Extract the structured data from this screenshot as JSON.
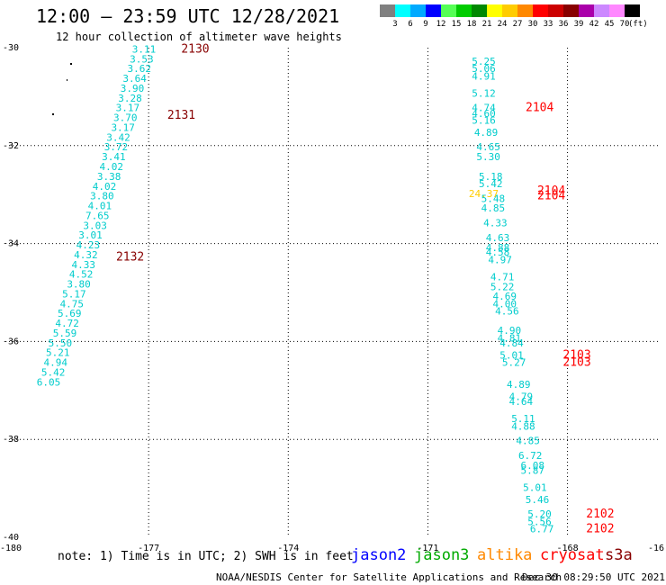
{
  "title": "12:00 — 23:59 UTC 12/28/2021",
  "subtitle": "12 hour collection of altimeter wave heights",
  "color_scale": {
    "colors": [
      "#808080",
      "#00ffff",
      "#00aaff",
      "#0000ff",
      "#55ff55",
      "#00cc00",
      "#008800",
      "#ffff00",
      "#ffcc00",
      "#ff8800",
      "#ff0000",
      "#cc0000",
      "#880000",
      "#aa00aa",
      "#cc88ff",
      "#ff88ff",
      "#000000"
    ],
    "labels": [
      "3",
      "6",
      "9",
      "12",
      "15",
      "18",
      "21",
      "24",
      "27",
      "30",
      "33",
      "36",
      "39",
      "42",
      "45",
      "70"
    ],
    "unit": "(ft)"
  },
  "lon_ticks": [
    "-180",
    "-177",
    "-174",
    "-171",
    "-168",
    "-16"
  ],
  "lat_ticks": [
    "-30",
    "-32",
    "-34",
    "-36",
    "-38",
    "-40"
  ],
  "note": "note: 1) Time is in UTC; 2) SWH is in feet",
  "legend": [
    {
      "name": "jason2",
      "color": "#0000ff"
    },
    {
      "name": "jason3",
      "color": "#00aa00"
    },
    {
      "name": "altika",
      "color": "#ff8800"
    },
    {
      "name": "cryosat",
      "color": "#ff0000"
    },
    {
      "name": "s3a",
      "color": "#880000"
    }
  ],
  "footer_left": "NOAA/NESDIS Center for Satellite Applications and Research",
  "footer_right": "Dec 30 08:29:50 UTC 2021",
  "map_data": {
    "track_west": {
      "color": "#00cccc",
      "points": [
        {
          "lon": -177.1,
          "lat": -30.1,
          "swh": "3.11"
        },
        {
          "lon": -177.15,
          "lat": -30.3,
          "swh": "3.53"
        },
        {
          "lon": -177.2,
          "lat": -30.5,
          "swh": "3.62"
        },
        {
          "lon": -177.3,
          "lat": -30.7,
          "swh": "3.64"
        },
        {
          "lon": -177.35,
          "lat": -30.9,
          "swh": "3.90"
        },
        {
          "lon": -177.4,
          "lat": -31.1,
          "swh": "3.28"
        },
        {
          "lon": -177.45,
          "lat": -31.3,
          "swh": "3.17"
        },
        {
          "lon": -177.5,
          "lat": -31.5,
          "swh": "3.70"
        },
        {
          "lon": -177.55,
          "lat": -31.7,
          "swh": "3.17"
        },
        {
          "lon": -177.65,
          "lat": -31.9,
          "swh": "3.42"
        },
        {
          "lon": -177.7,
          "lat": -32.1,
          "swh": "3.72"
        },
        {
          "lon": -177.75,
          "lat": -32.3,
          "swh": "3.41"
        },
        {
          "lon": -177.8,
          "lat": -32.5,
          "swh": "4.02"
        },
        {
          "lon": -177.85,
          "lat": -32.7,
          "swh": "3.38"
        },
        {
          "lon": -177.95,
          "lat": -32.9,
          "swh": "4.02"
        },
        {
          "lon": -178.0,
          "lat": -33.1,
          "swh": "3.80"
        },
        {
          "lon": -178.05,
          "lat": -33.3,
          "swh": "4.01"
        },
        {
          "lon": -178.1,
          "lat": -33.5,
          "swh": "7.65"
        },
        {
          "lon": -178.15,
          "lat": -33.7,
          "swh": "3.03"
        },
        {
          "lon": -178.25,
          "lat": -33.9,
          "swh": "3.01"
        },
        {
          "lon": -178.3,
          "lat": -34.1,
          "swh": "4.23"
        },
        {
          "lon": -178.35,
          "lat": -34.3,
          "swh": "4.32"
        },
        {
          "lon": -178.4,
          "lat": -34.5,
          "swh": "4.33"
        },
        {
          "lon": -178.45,
          "lat": -34.7,
          "swh": "4.52"
        },
        {
          "lon": -178.5,
          "lat": -34.9,
          "swh": "3.80"
        },
        {
          "lon": -178.6,
          "lat": -35.1,
          "swh": "5.17"
        },
        {
          "lon": -178.65,
          "lat": -35.3,
          "swh": "4.75"
        },
        {
          "lon": -178.7,
          "lat": -35.5,
          "swh": "5.69"
        },
        {
          "lon": -178.75,
          "lat": -35.7,
          "swh": "4.72"
        },
        {
          "lon": -178.8,
          "lat": -35.9,
          "swh": "5.59"
        },
        {
          "lon": -178.9,
          "lat": -36.1,
          "swh": "5.50"
        },
        {
          "lon": -178.95,
          "lat": -36.3,
          "swh": "5.21"
        },
        {
          "lon": -179.0,
          "lat": -36.5,
          "swh": "4.94"
        },
        {
          "lon": -179.05,
          "lat": -36.7,
          "swh": "5.42"
        },
        {
          "lon": -179.15,
          "lat": -36.9,
          "swh": "6.05"
        }
      ],
      "times": [
        {
          "lon": -176.3,
          "lat": -30.1,
          "label": "2130",
          "color": "#880000"
        },
        {
          "lon": -176.6,
          "lat": -31.45,
          "label": "2131",
          "color": "#880000"
        },
        {
          "lon": -177.7,
          "lat": -34.35,
          "label": "2132",
          "color": "#880000"
        }
      ]
    },
    "track_east": {
      "color": "#00cccc",
      "points": [
        {
          "lon": -169.8,
          "lat": -30.35,
          "swh": "5.25"
        },
        {
          "lon": -169.8,
          "lat": -30.5,
          "swh": "5.06"
        },
        {
          "lon": -169.8,
          "lat": -30.65,
          "swh": "4.91"
        },
        {
          "lon": -169.8,
          "lat": -31.0,
          "swh": "5.12"
        },
        {
          "lon": -169.8,
          "lat": -31.3,
          "swh": "4.74"
        },
        {
          "lon": -169.8,
          "lat": -31.42,
          "swh": "4.60"
        },
        {
          "lon": -169.8,
          "lat": -31.55,
          "swh": "5.16"
        },
        {
          "lon": -169.75,
          "lat": -31.8,
          "swh": "4.89"
        },
        {
          "lon": -169.7,
          "lat": -32.1,
          "swh": "4.65"
        },
        {
          "lon": -169.7,
          "lat": -32.3,
          "swh": "5.30"
        },
        {
          "lon": -169.65,
          "lat": -32.7,
          "swh": "5.18"
        },
        {
          "lon": -169.65,
          "lat": -32.85,
          "swh": "5.42"
        },
        {
          "lon": -169.6,
          "lat": -33.15,
          "swh": "5.48"
        },
        {
          "lon": -169.6,
          "lat": -33.35,
          "swh": "4.85"
        },
        {
          "lon": -169.55,
          "lat": -33.65,
          "swh": "4.33"
        },
        {
          "lon": -169.5,
          "lat": -33.95,
          "swh": "4.63"
        },
        {
          "lon": -169.5,
          "lat": -34.15,
          "swh": "4.88"
        },
        {
          "lon": -169.5,
          "lat": -34.25,
          "swh": "4.58"
        },
        {
          "lon": -169.45,
          "lat": -34.4,
          "swh": "4.97"
        },
        {
          "lon": -169.4,
          "lat": -34.75,
          "swh": "4.71"
        },
        {
          "lon": -169.4,
          "lat": -34.95,
          "swh": "5.22"
        },
        {
          "lon": -169.35,
          "lat": -35.15,
          "swh": "4.69"
        },
        {
          "lon": -169.35,
          "lat": -35.3,
          "swh": "4.00"
        },
        {
          "lon": -169.3,
          "lat": -35.45,
          "swh": "4.56"
        },
        {
          "lon": -169.25,
          "lat": -35.85,
          "swh": "4.90"
        },
        {
          "lon": -169.25,
          "lat": -36.0,
          "swh": "4.81"
        },
        {
          "lon": -169.2,
          "lat": -36.1,
          "swh": "4.84"
        },
        {
          "lon": -169.2,
          "lat": -36.35,
          "swh": "5.01"
        },
        {
          "lon": -169.15,
          "lat": -36.5,
          "swh": "5.27"
        },
        {
          "lon": -169.05,
          "lat": -36.95,
          "swh": "4.89"
        },
        {
          "lon": -169.0,
          "lat": -37.2,
          "swh": "4.79"
        },
        {
          "lon": -169.0,
          "lat": -37.3,
          "swh": "4.64"
        },
        {
          "lon": -168.95,
          "lat": -37.65,
          "swh": "5.11"
        },
        {
          "lon": -168.95,
          "lat": -37.8,
          "swh": "4.88"
        },
        {
          "lon": -168.85,
          "lat": -38.1,
          "swh": "4.85"
        },
        {
          "lon": -168.8,
          "lat": -38.4,
          "swh": "6.72"
        },
        {
          "lon": -168.75,
          "lat": -38.6,
          "swh": "6.08"
        },
        {
          "lon": -168.75,
          "lat": -38.7,
          "swh": "5.87"
        },
        {
          "lon": -168.7,
          "lat": -39.05,
          "swh": "5.01"
        },
        {
          "lon": -168.65,
          "lat": -39.3,
          "swh": "5.46"
        },
        {
          "lon": -168.6,
          "lat": -39.6,
          "swh": "5.20"
        },
        {
          "lon": -168.6,
          "lat": -39.75,
          "swh": "5.56"
        },
        {
          "lon": -168.55,
          "lat": -39.9,
          "swh": "6.77"
        }
      ],
      "highlight": {
        "lon": -169.8,
        "lat": -33.05,
        "swh": "24.37",
        "color": "#ffcc00"
      },
      "times": [
        {
          "lon": -168.9,
          "lat": -31.3,
          "label": "2104",
          "color": "#ff0000"
        },
        {
          "lon": -168.65,
          "lat": -33.0,
          "label": "2104",
          "color": "#ff0000"
        },
        {
          "lon": -168.65,
          "lat": -33.1,
          "label": "2104",
          "color": "#ff0000"
        },
        {
          "lon": -168.1,
          "lat": -36.35,
          "label": "2103",
          "color": "#ff0000"
        },
        {
          "lon": -168.1,
          "lat": -36.5,
          "label": "2103",
          "color": "#ff0000"
        },
        {
          "lon": -167.6,
          "lat": -39.6,
          "label": "2102",
          "color": "#ff0000"
        },
        {
          "lon": -167.6,
          "lat": -39.9,
          "label": "2102",
          "color": "#ff0000"
        }
      ]
    }
  }
}
